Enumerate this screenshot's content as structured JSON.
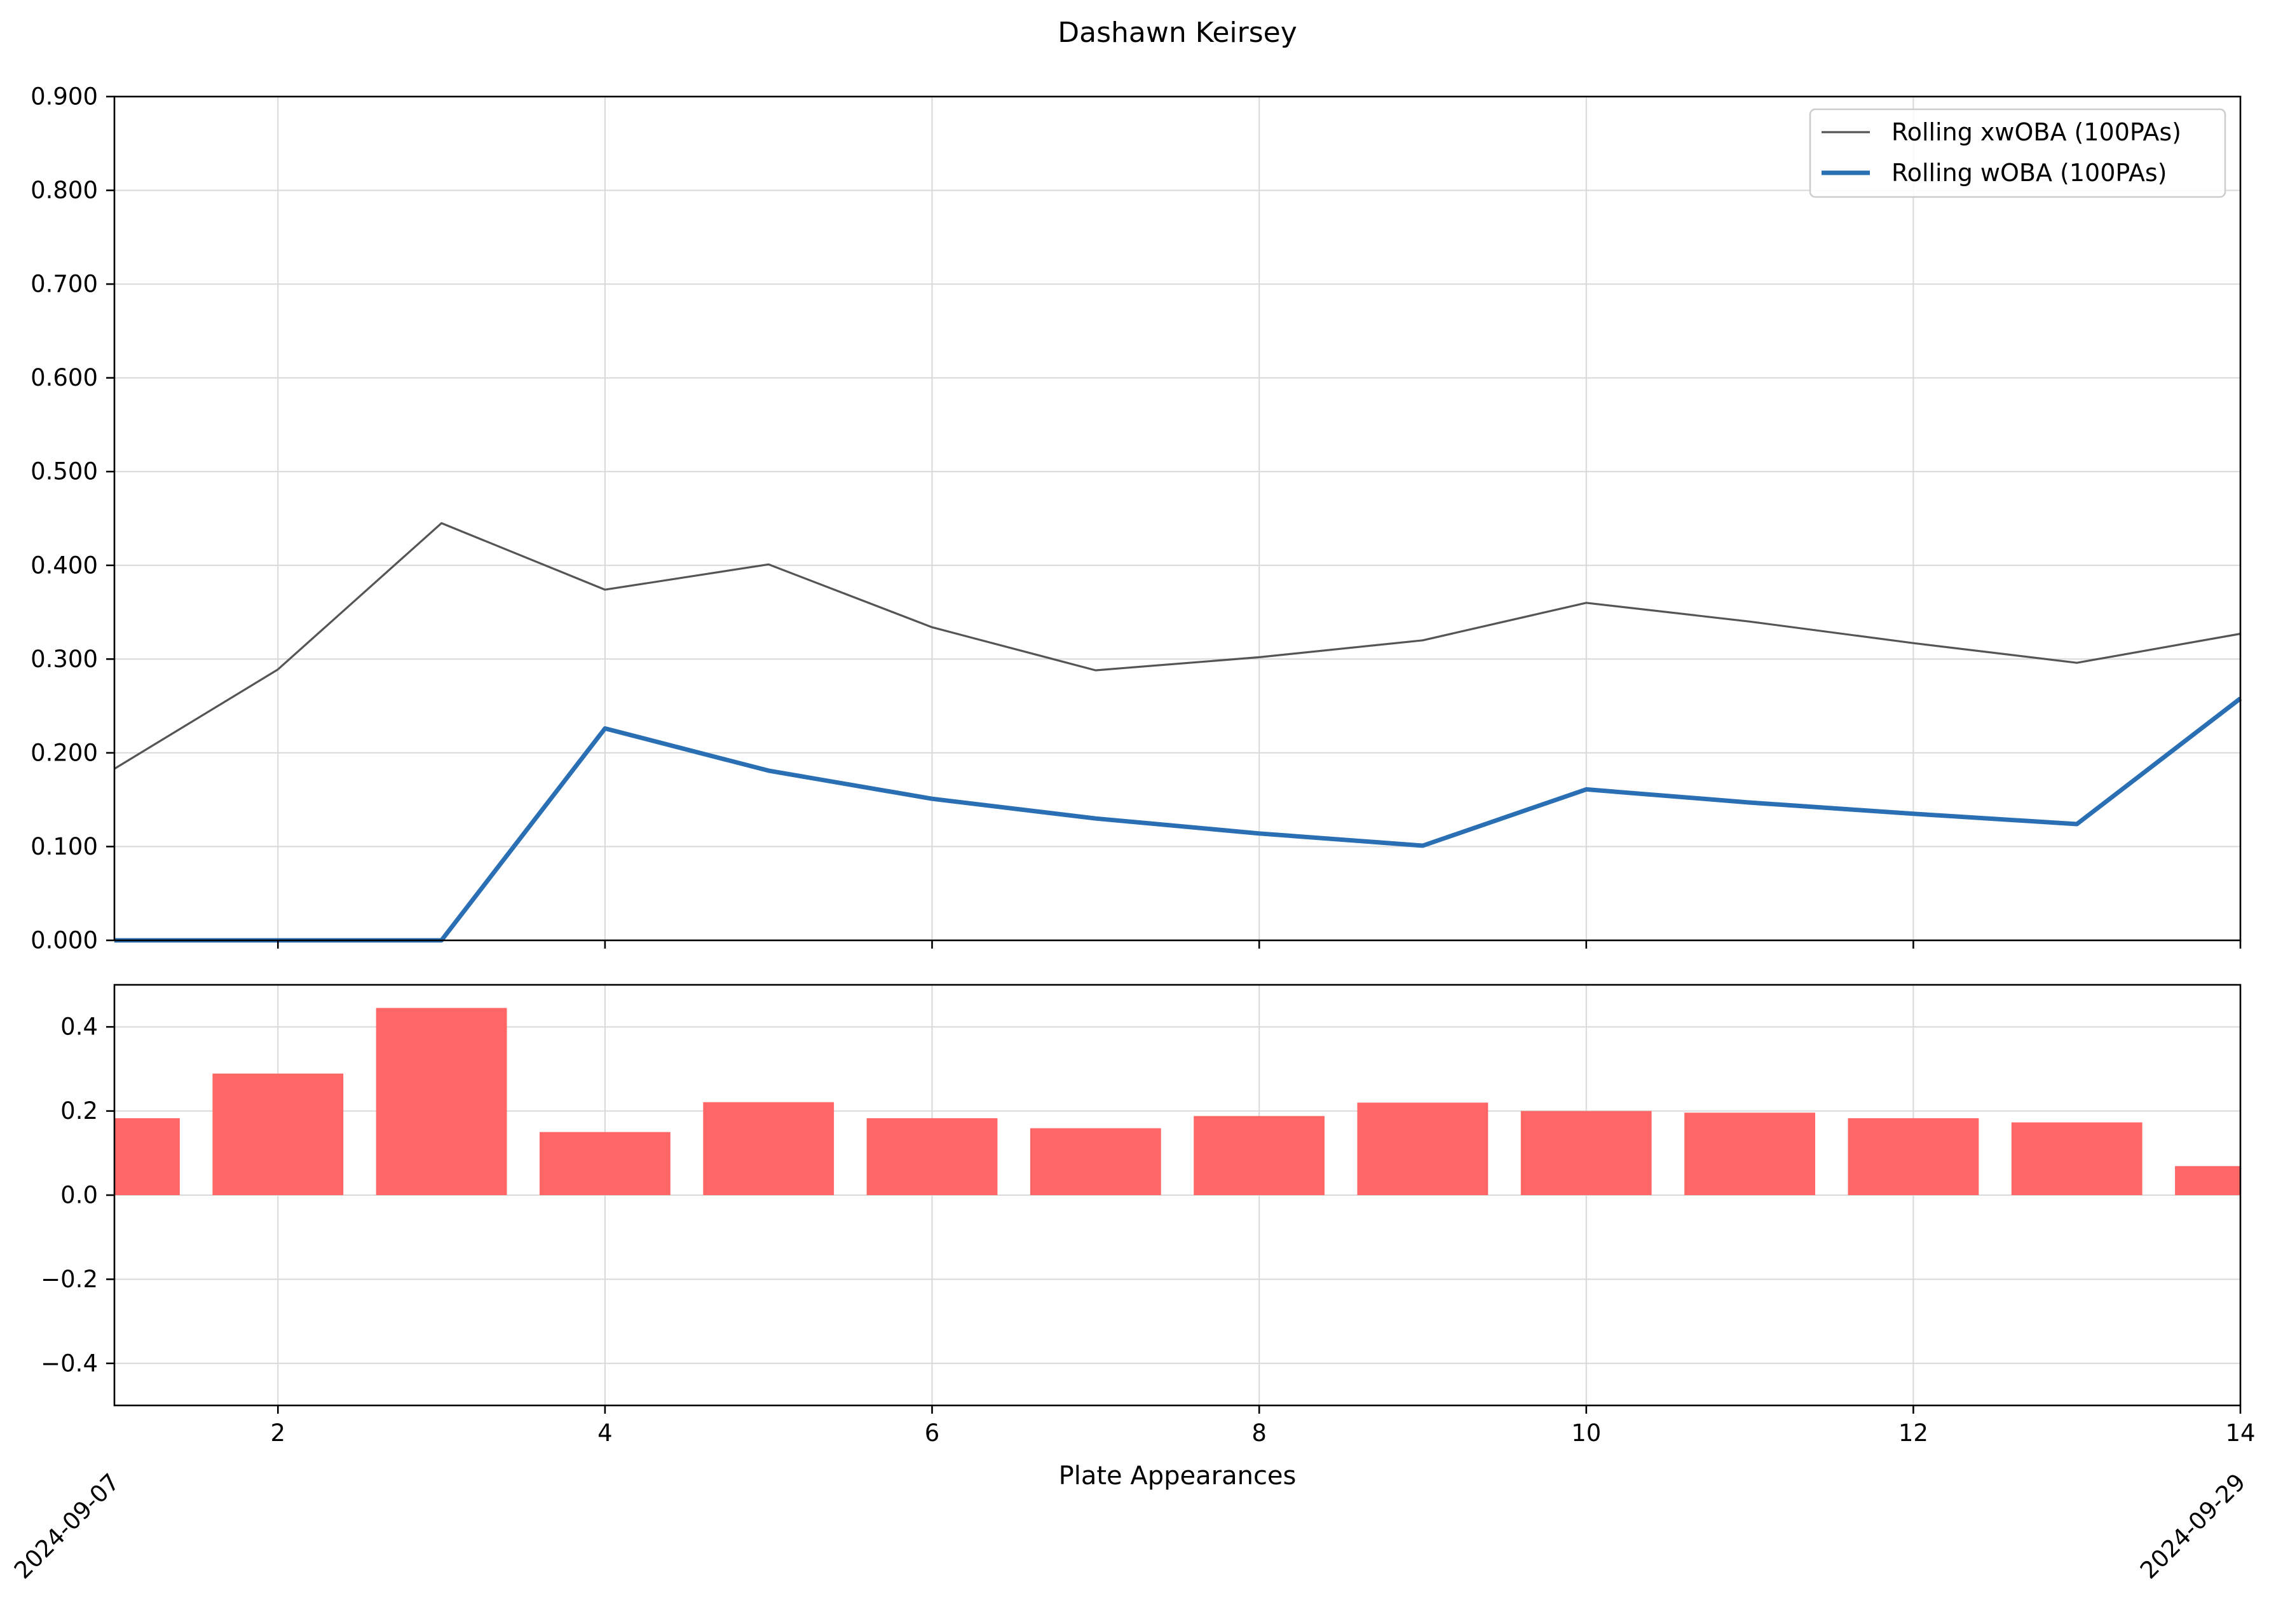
{
  "chart_data": [
    {
      "type": "line",
      "title": "Dashawn Keirsey",
      "xlim": [
        1,
        14
      ],
      "ylim": [
        0.0,
        0.9
      ],
      "y_ticks": [
        0.0,
        0.1,
        0.2,
        0.3,
        0.4,
        0.5,
        0.6,
        0.7,
        0.8,
        0.9
      ],
      "y_tick_labels": [
        "0.000",
        "0.100",
        "0.200",
        "0.300",
        "0.400",
        "0.500",
        "0.600",
        "0.700",
        "0.800",
        "0.900"
      ],
      "x_ticks": [
        2,
        4,
        6,
        8,
        10,
        12,
        14
      ],
      "grid": true,
      "legend_position": "top-right",
      "series": [
        {
          "name": "Rolling xwOBA (100PAs)",
          "color": "#555555",
          "x": [
            1,
            2,
            3,
            4,
            5,
            6,
            7,
            8,
            9,
            10,
            11,
            12,
            13,
            14
          ],
          "values": [
            0.183,
            0.289,
            0.445,
            0.374,
            0.401,
            0.334,
            0.288,
            0.302,
            0.32,
            0.36,
            0.34,
            0.317,
            0.296,
            0.327
          ]
        },
        {
          "name": "Rolling wOBA (100PAs)",
          "color": "#2a6fb4",
          "x": [
            1,
            2,
            3,
            4,
            5,
            6,
            7,
            8,
            9,
            10,
            11,
            12,
            13,
            14
          ],
          "values": [
            0.0,
            0.0,
            0.0,
            0.226,
            0.181,
            0.151,
            0.13,
            0.114,
            0.101,
            0.161,
            0.147,
            0.135,
            0.124,
            0.258
          ]
        }
      ]
    },
    {
      "type": "bar",
      "xlabel": "Plate Appearances",
      "xlim": [
        1,
        14
      ],
      "ylim": [
        -0.5,
        0.5
      ],
      "y_ticks": [
        -0.4,
        -0.2,
        0.0,
        0.2,
        0.4
      ],
      "y_tick_labels": [
        "−0.4",
        "−0.2",
        "0.0",
        "0.2",
        "0.4"
      ],
      "x_ticks": [
        2,
        4,
        6,
        8,
        10,
        12,
        14
      ],
      "x_tick_labels": [
        "2",
        "4",
        "6",
        "8",
        "10",
        "12",
        "14"
      ],
      "grid": true,
      "color": "#ff6666",
      "bar_width": 0.8,
      "x": [
        1,
        2,
        3,
        4,
        5,
        6,
        7,
        8,
        9,
        10,
        11,
        12,
        13,
        14
      ],
      "values": [
        0.183,
        0.289,
        0.445,
        0.15,
        0.221,
        0.183,
        0.159,
        0.188,
        0.22,
        0.2,
        0.196,
        0.183,
        0.173,
        0.069
      ],
      "date_labels": [
        {
          "x": 1,
          "label": "2024-09-07"
        },
        {
          "x": 14,
          "label": "2024-09-29"
        }
      ]
    }
  ]
}
